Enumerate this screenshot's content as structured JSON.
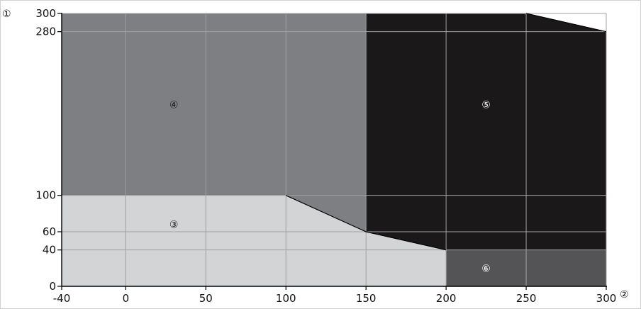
{
  "chart_data": {
    "type": "area",
    "title": "",
    "xlabel": "②",
    "ylabel": "①",
    "xlim": [
      -40,
      300
    ],
    "ylim": [
      0,
      300
    ],
    "x_ticks": [
      -40,
      0,
      50,
      100,
      150,
      200,
      250,
      300
    ],
    "y_ticks": [
      0,
      40,
      60,
      100,
      280,
      300
    ],
    "grid": true,
    "colors": {
      "region_3": "#d3d4d6",
      "region_4": "#7e7f82",
      "region_5": "#1b1819",
      "region_6": "#545456",
      "grid": "#a0a0a0",
      "boundary": "#000000"
    },
    "regions": [
      {
        "label": "③",
        "label_at": [
          30,
          68
        ],
        "label_color": "#111111",
        "polygon": [
          [
            -40,
            0
          ],
          [
            200,
            0
          ],
          [
            200,
            40
          ],
          [
            150,
            60
          ],
          [
            100,
            100
          ],
          [
            -40,
            100
          ]
        ]
      },
      {
        "label": "④",
        "label_at": [
          30,
          200
        ],
        "label_color": "#111111",
        "polygon": [
          [
            -40,
            100
          ],
          [
            100,
            100
          ],
          [
            150,
            60
          ],
          [
            150,
            300
          ],
          [
            -40,
            300
          ]
        ]
      },
      {
        "label": "⑤",
        "label_at": [
          225,
          200
        ],
        "label_color": "#ffffff",
        "polygon": [
          [
            150,
            60
          ],
          [
            200,
            40
          ],
          [
            300,
            40
          ],
          [
            300,
            280
          ],
          [
            250,
            300
          ],
          [
            150,
            300
          ]
        ]
      },
      {
        "label": "⑥",
        "label_at": [
          225,
          20
        ],
        "label_color": "#ffffff",
        "polygon": [
          [
            200,
            0
          ],
          [
            300,
            0
          ],
          [
            300,
            40
          ],
          [
            200,
            40
          ]
        ]
      }
    ],
    "boundary_lines": [
      [
        [
          100,
          100
        ],
        [
          150,
          60
        ],
        [
          200,
          40
        ]
      ],
      [
        [
          250,
          300
        ],
        [
          300,
          280
        ]
      ]
    ]
  }
}
